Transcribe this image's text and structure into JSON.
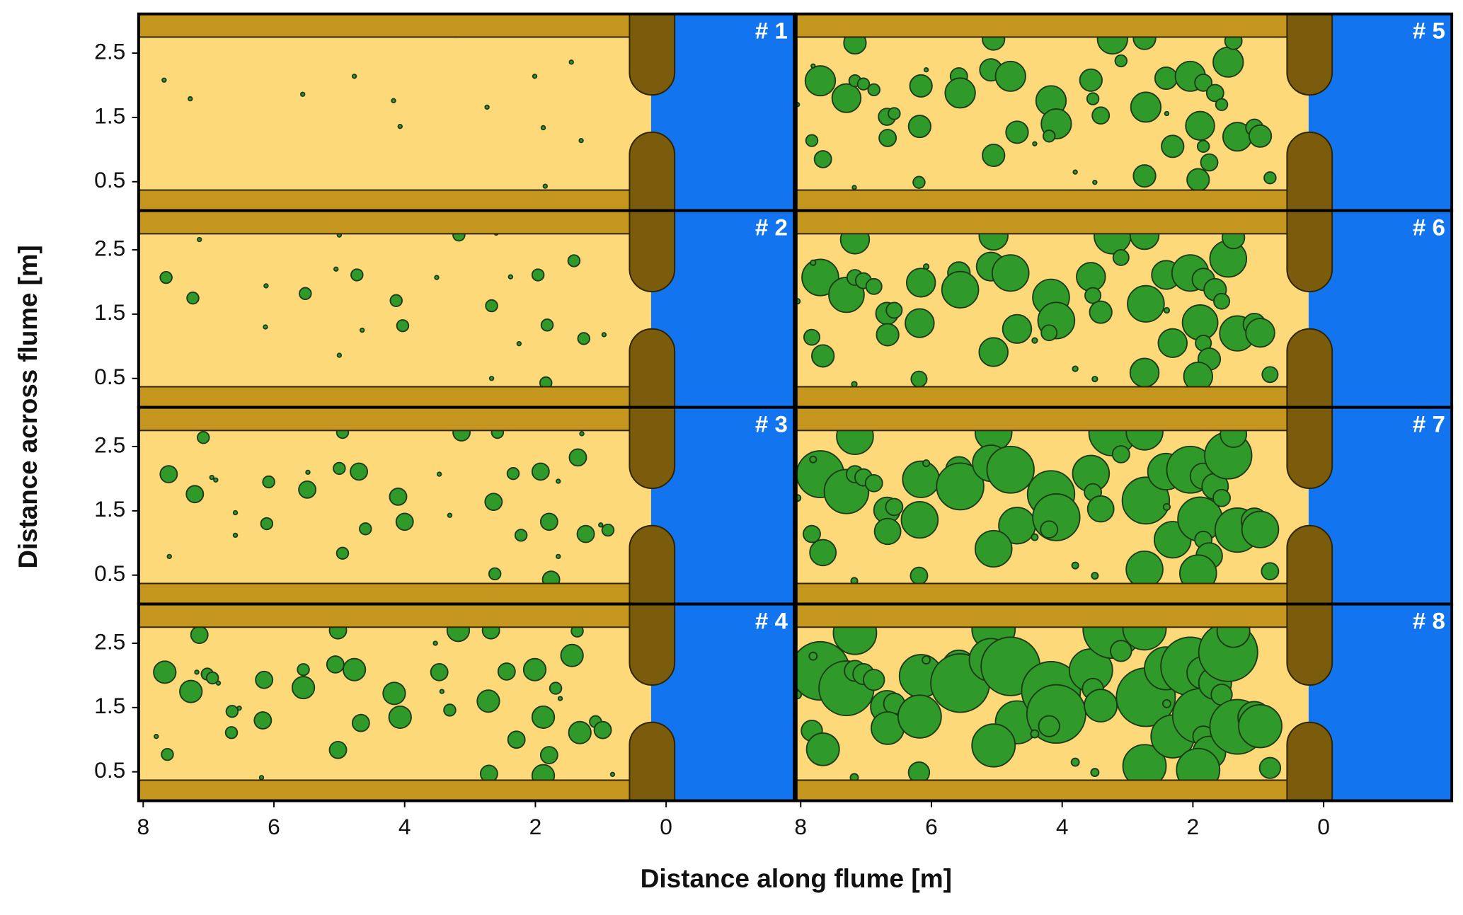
{
  "chart_data": {
    "type": "scatter",
    "xlabel": "Distance along flume [m]",
    "ylabel": "Distance across flume [m]",
    "xlim": [
      8.07,
      -1.96
    ],
    "ylim": [
      0.05,
      3.11
    ],
    "xticks": [
      8,
      6,
      4,
      2,
      0
    ],
    "yticks": [
      0.5,
      1.5,
      2.5
    ],
    "color": "#2f9a2a",
    "panels": [
      {
        "name": "# 1",
        "x": [
          7.68,
          7.28,
          5.56,
          4.77,
          4.17,
          4.07,
          2.74,
          2.01,
          1.88,
          1.45,
          1.3,
          1.85,
          3.21
        ],
        "y": [
          2.08,
          1.79,
          1.86,
          2.14,
          1.76,
          1.36,
          1.66,
          2.14,
          1.34,
          2.36,
          1.14,
          0.43,
          2.78
        ],
        "size": [
          0.03,
          0.03,
          0.03,
          0.03,
          0.03,
          0.03,
          0.03,
          0.03,
          0.03,
          0.03,
          0.03,
          0.03,
          0.03
        ]
      },
      {
        "name": "# 2",
        "x": [
          7.65,
          7.24,
          7.14,
          6.12,
          6.13,
          5.52,
          5.0,
          5.05,
          4.73,
          5.0,
          4.65,
          4.13,
          4.03,
          3.51,
          3.17,
          2.67,
          2.6,
          2.67,
          2.38,
          1.96,
          2.25,
          1.82,
          1.41,
          1.26,
          0.95,
          1.84
        ],
        "y": [
          2.07,
          1.75,
          2.66,
          1.94,
          1.3,
          1.82,
          2.73,
          2.2,
          2.11,
          0.86,
          1.25,
          1.71,
          1.32,
          2.07,
          2.73,
          1.63,
          2.76,
          0.5,
          2.08,
          2.11,
          1.04,
          1.33,
          2.33,
          1.12,
          1.18,
          0.43
        ],
        "size": [
          0.09,
          0.09,
          0.03,
          0.03,
          0.03,
          0.09,
          0.03,
          0.03,
          0.09,
          0.03,
          0.03,
          0.09,
          0.09,
          0.03,
          0.09,
          0.09,
          0.03,
          0.03,
          0.03,
          0.09,
          0.03,
          0.09,
          0.09,
          0.09,
          0.03,
          0.09
        ]
      },
      {
        "name": "# 3",
        "x": [
          7.61,
          7.21,
          7.08,
          6.95,
          6.89,
          6.08,
          6.11,
          6.59,
          6.59,
          7.6,
          5.49,
          5.48,
          4.95,
          5.0,
          4.7,
          4.95,
          4.6,
          4.1,
          4.0,
          3.47,
          3.13,
          3.31,
          2.58,
          2.64,
          2.62,
          2.34,
          2.22,
          1.92,
          1.65,
          1.79,
          1.29,
          1.35,
          1.23,
          0.89,
          1.0,
          1.65,
          1.76
        ],
        "y": [
          2.07,
          1.76,
          2.64,
          2.02,
          1.98,
          1.95,
          1.3,
          1.47,
          1.12,
          0.79,
          1.83,
          2.1,
          2.72,
          2.16,
          2.11,
          0.84,
          1.22,
          1.72,
          1.33,
          2.07,
          2.72,
          1.43,
          2.72,
          1.64,
          0.52,
          2.08,
          1.12,
          2.11,
          1.96,
          1.33,
          2.7,
          2.33,
          1.14,
          1.2,
          1.28,
          0.79,
          0.43
        ],
        "size": [
          0.13,
          0.13,
          0.09,
          0.03,
          0.03,
          0.09,
          0.09,
          0.03,
          0.03,
          0.03,
          0.13,
          0.03,
          0.09,
          0.09,
          0.13,
          0.09,
          0.09,
          0.13,
          0.13,
          0.03,
          0.13,
          0.03,
          0.09,
          0.13,
          0.09,
          0.09,
          0.09,
          0.13,
          0.03,
          0.13,
          0.03,
          0.13,
          0.13,
          0.09,
          0.03,
          0.03,
          0.13
        ]
      },
      {
        "name": "# 4",
        "x": [
          7.67,
          7.27,
          7.14,
          7.02,
          6.94,
          6.85,
          7.18,
          6.64,
          6.65,
          6.53,
          7.8,
          7.63,
          6.15,
          6.17,
          6.19,
          5.55,
          5.55,
          5.02,
          5.06,
          4.77,
          5.02,
          4.67,
          4.16,
          4.07,
          3.47,
          3.43,
          3.31,
          3.18,
          3.53,
          2.68,
          2.72,
          2.71,
          2.44,
          2.29,
          2.01,
          1.88,
          1.79,
          1.69,
          1.62,
          1.88,
          1.44,
          1.36,
          1.32,
          1.08,
          0.97,
          0.82
        ],
        "y": [
          2.05,
          1.75,
          2.63,
          2.02,
          1.96,
          1.88,
          2.05,
          1.44,
          1.11,
          1.49,
          1.05,
          0.77,
          1.93,
          1.3,
          0.41,
          1.81,
          2.09,
          2.7,
          2.17,
          2.09,
          0.84,
          1.26,
          1.72,
          1.35,
          2.05,
          1.75,
          1.46,
          2.7,
          2.5,
          2.7,
          1.6,
          0.47,
          2.06,
          1.0,
          2.09,
          1.35,
          0.76,
          1.8,
          1.64,
          0.44,
          2.31,
          2.69,
          1.11,
          1.28,
          1.15,
          0.46
        ],
        "size": [
          0.17,
          0.17,
          0.13,
          0.09,
          0.09,
          0.03,
          0.03,
          0.09,
          0.09,
          0.03,
          0.03,
          0.09,
          0.13,
          0.13,
          0.03,
          0.17,
          0.09,
          0.13,
          0.13,
          0.17,
          0.13,
          0.13,
          0.17,
          0.17,
          0.13,
          0.03,
          0.09,
          0.17,
          0.03,
          0.13,
          0.17,
          0.13,
          0.13,
          0.13,
          0.17,
          0.17,
          0.13,
          0.09,
          0.03,
          0.17,
          0.17,
          0.09,
          0.17,
          0.09,
          0.13,
          0.03
        ]
      },
      {
        "name": "# 5",
        "x": [
          7.17,
          7.7,
          7.3,
          7.81,
          7.17,
          7.04,
          6.88,
          8.05,
          7.83,
          7.66,
          7.18,
          6.68,
          6.57,
          6.67,
          6.16,
          6.18,
          6.19,
          6.08,
          5.58,
          5.56,
          5.05,
          5.09,
          4.79,
          4.69,
          5.05,
          4.17,
          4.09,
          4.2,
          4.42,
          3.56,
          3.53,
          3.41,
          3.8,
          3.5,
          3.23,
          3.1,
          2.74,
          2.72,
          2.74,
          2.41,
          2.4,
          2.31,
          2.04,
          1.89,
          1.84,
          1.75,
          1.92,
          1.84,
          1.66,
          1.56,
          1.46,
          1.38,
          1.32,
          1.06,
          0.97,
          0.82
        ],
        "y": [
          2.66,
          2.07,
          1.8,
          2.3,
          2.07,
          2.02,
          1.93,
          1.7,
          1.14,
          0.85,
          0.41,
          1.51,
          1.56,
          1.18,
          1.99,
          1.36,
          0.49,
          2.24,
          2.14,
          1.88,
          2.72,
          2.24,
          2.14,
          1.27,
          0.91,
          1.76,
          1.4,
          1.21,
          1.09,
          2.08,
          1.79,
          1.53,
          0.65,
          0.49,
          2.72,
          2.38,
          2.73,
          1.66,
          0.59,
          2.11,
          1.56,
          1.05,
          2.14,
          1.37,
          1.05,
          0.8,
          0.53,
          2.04,
          1.88,
          1.7,
          2.36,
          2.69,
          1.2,
          1.34,
          1.21,
          0.56
        ],
        "size": [
          0.17,
          0.23,
          0.22,
          0.03,
          0.09,
          0.09,
          0.09,
          0.03,
          0.09,
          0.13,
          0.03,
          0.13,
          0.09,
          0.13,
          0.17,
          0.17,
          0.09,
          0.03,
          0.13,
          0.23,
          0.17,
          0.17,
          0.23,
          0.17,
          0.17,
          0.23,
          0.23,
          0.09,
          0.03,
          0.17,
          0.09,
          0.13,
          0.03,
          0.03,
          0.23,
          0.09,
          0.17,
          0.23,
          0.17,
          0.17,
          0.03,
          0.17,
          0.23,
          0.22,
          0.09,
          0.13,
          0.17,
          0.13,
          0.13,
          0.09,
          0.23,
          0.13,
          0.22,
          0.13,
          0.17,
          0.09
        ]
      },
      {
        "name": "# 6",
        "x": [
          7.17,
          7.7,
          7.3,
          7.81,
          7.17,
          7.04,
          6.88,
          8.05,
          7.83,
          7.66,
          7.18,
          6.68,
          6.57,
          6.67,
          6.16,
          6.18,
          6.19,
          6.08,
          5.58,
          5.56,
          5.05,
          5.09,
          4.79,
          4.69,
          5.05,
          4.17,
          4.09,
          4.2,
          4.42,
          3.56,
          3.53,
          3.41,
          3.8,
          3.5,
          3.23,
          3.1,
          2.74,
          2.72,
          2.74,
          2.41,
          2.4,
          2.31,
          2.04,
          1.89,
          1.84,
          1.75,
          1.92,
          1.84,
          1.66,
          1.56,
          1.46,
          1.38,
          1.32,
          1.06,
          0.97,
          0.82
        ],
        "y": [
          2.66,
          2.07,
          1.8,
          2.3,
          2.07,
          2.02,
          1.93,
          1.7,
          1.14,
          0.85,
          0.41,
          1.51,
          1.56,
          1.18,
          1.99,
          1.36,
          0.49,
          2.24,
          2.14,
          1.88,
          2.72,
          2.24,
          2.14,
          1.27,
          0.91,
          1.76,
          1.4,
          1.21,
          1.09,
          2.08,
          1.79,
          1.53,
          0.65,
          0.49,
          2.72,
          2.38,
          2.73,
          1.66,
          0.59,
          2.11,
          1.56,
          1.05,
          2.14,
          1.37,
          1.05,
          0.8,
          0.53,
          2.04,
          1.88,
          1.7,
          2.36,
          2.69,
          1.2,
          1.34,
          1.21,
          0.56
        ],
        "size": [
          0.22,
          0.28,
          0.27,
          0.04,
          0.12,
          0.12,
          0.12,
          0.04,
          0.12,
          0.17,
          0.04,
          0.17,
          0.12,
          0.17,
          0.22,
          0.22,
          0.12,
          0.04,
          0.17,
          0.28,
          0.22,
          0.22,
          0.28,
          0.22,
          0.22,
          0.28,
          0.28,
          0.12,
          0.04,
          0.22,
          0.12,
          0.17,
          0.04,
          0.04,
          0.28,
          0.12,
          0.22,
          0.28,
          0.22,
          0.22,
          0.04,
          0.22,
          0.28,
          0.27,
          0.12,
          0.17,
          0.22,
          0.17,
          0.17,
          0.12,
          0.28,
          0.17,
          0.27,
          0.17,
          0.22,
          0.12
        ]
      },
      {
        "name": "# 7",
        "x": [
          7.17,
          7.7,
          7.3,
          7.81,
          7.17,
          7.04,
          6.88,
          8.05,
          7.83,
          7.66,
          7.18,
          6.68,
          6.57,
          6.67,
          6.16,
          6.18,
          6.19,
          6.08,
          5.58,
          5.56,
          5.05,
          5.09,
          4.79,
          4.69,
          5.05,
          4.17,
          4.09,
          4.2,
          4.42,
          3.56,
          3.53,
          3.41,
          3.8,
          3.5,
          3.23,
          3.1,
          2.74,
          2.72,
          2.74,
          2.41,
          2.4,
          2.31,
          2.04,
          1.89,
          1.84,
          1.75,
          1.92,
          1.84,
          1.66,
          1.56,
          1.46,
          1.38,
          1.32,
          1.06,
          0.97,
          0.82
        ],
        "y": [
          2.66,
          2.07,
          1.8,
          2.3,
          2.07,
          2.02,
          1.93,
          1.7,
          1.14,
          0.85,
          0.41,
          1.51,
          1.56,
          1.18,
          1.99,
          1.36,
          0.49,
          2.24,
          2.14,
          1.88,
          2.72,
          2.24,
          2.14,
          1.27,
          0.91,
          1.76,
          1.4,
          1.21,
          1.09,
          2.08,
          1.79,
          1.53,
          0.65,
          0.49,
          2.72,
          2.38,
          2.73,
          1.66,
          0.59,
          2.11,
          1.56,
          1.05,
          2.14,
          1.37,
          1.05,
          0.8,
          0.53,
          2.04,
          1.88,
          1.7,
          2.36,
          2.69,
          1.2,
          1.34,
          1.21,
          0.56
        ],
        "size": [
          0.28,
          0.36,
          0.34,
          0.05,
          0.13,
          0.13,
          0.13,
          0.05,
          0.13,
          0.2,
          0.05,
          0.2,
          0.13,
          0.2,
          0.28,
          0.28,
          0.13,
          0.05,
          0.2,
          0.36,
          0.28,
          0.28,
          0.36,
          0.28,
          0.28,
          0.36,
          0.36,
          0.13,
          0.05,
          0.28,
          0.13,
          0.2,
          0.05,
          0.05,
          0.36,
          0.13,
          0.28,
          0.36,
          0.28,
          0.28,
          0.05,
          0.28,
          0.36,
          0.34,
          0.13,
          0.2,
          0.28,
          0.2,
          0.2,
          0.13,
          0.36,
          0.2,
          0.34,
          0.2,
          0.28,
          0.13
        ]
      },
      {
        "name": "# 8",
        "x": [
          7.17,
          7.7,
          7.3,
          7.81,
          7.17,
          7.04,
          6.88,
          8.05,
          7.83,
          7.66,
          7.18,
          6.68,
          6.57,
          6.67,
          6.16,
          6.18,
          6.19,
          6.08,
          5.58,
          5.56,
          5.05,
          5.09,
          4.79,
          4.69,
          5.05,
          4.17,
          4.09,
          4.2,
          4.42,
          3.56,
          3.53,
          3.41,
          3.8,
          3.5,
          3.23,
          3.1,
          2.74,
          2.72,
          2.74,
          2.41,
          2.4,
          2.31,
          2.04,
          1.89,
          1.84,
          1.75,
          1.92,
          1.84,
          1.66,
          1.56,
          1.46,
          1.38,
          1.32,
          1.06,
          0.97,
          0.82
        ],
        "y": [
          2.66,
          2.07,
          1.8,
          2.3,
          2.07,
          2.02,
          1.93,
          1.7,
          1.14,
          0.85,
          0.41,
          1.51,
          1.56,
          1.18,
          1.99,
          1.36,
          0.49,
          2.24,
          2.14,
          1.88,
          2.72,
          2.24,
          2.14,
          1.27,
          0.91,
          1.76,
          1.4,
          1.21,
          1.09,
          2.08,
          1.79,
          1.53,
          0.65,
          0.49,
          2.72,
          2.38,
          2.73,
          1.66,
          0.59,
          2.11,
          1.56,
          1.05,
          2.14,
          1.37,
          1.05,
          0.8,
          0.53,
          2.04,
          1.88,
          1.7,
          2.36,
          2.69,
          1.2,
          1.34,
          1.21,
          0.56
        ],
        "size": [
          0.33,
          0.45,
          0.42,
          0.06,
          0.16,
          0.16,
          0.16,
          0.06,
          0.16,
          0.25,
          0.06,
          0.25,
          0.16,
          0.25,
          0.33,
          0.33,
          0.16,
          0.06,
          0.25,
          0.45,
          0.33,
          0.33,
          0.45,
          0.33,
          0.33,
          0.45,
          0.45,
          0.16,
          0.06,
          0.33,
          0.16,
          0.25,
          0.06,
          0.06,
          0.45,
          0.16,
          0.33,
          0.45,
          0.33,
          0.33,
          0.06,
          0.33,
          0.45,
          0.42,
          0.16,
          0.25,
          0.33,
          0.25,
          0.25,
          0.16,
          0.45,
          0.25,
          0.42,
          0.25,
          0.33,
          0.16
        ]
      }
    ]
  }
}
